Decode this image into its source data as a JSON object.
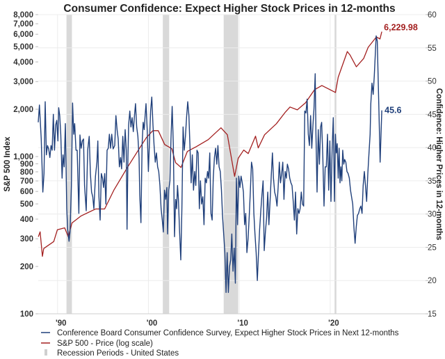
{
  "chart_data": {
    "type": "line",
    "title": "Consumer Confidence: Expect Higher Stock Prices in 12-months",
    "y_left_label": "S&P 500 Index",
    "y_right_label": "Confidence: Higher Prices in 12-months",
    "x_ticks": [
      {
        "year": 1990,
        "label": "'90"
      },
      {
        "year": 2000,
        "label": "'00"
      },
      {
        "year": 2010,
        "label": "'10"
      },
      {
        "year": 2020,
        "label": "'20"
      }
    ],
    "xlim": [
      1987.5,
      2030
    ],
    "y_left": {
      "scale": "log",
      "range": [
        100,
        8000
      ],
      "ticks": [
        100,
        200,
        300,
        400,
        500,
        600,
        700,
        800,
        900,
        1000,
        2000,
        3000,
        4000,
        5000,
        6000,
        7000,
        8000
      ],
      "tick_labels": [
        "100",
        "200",
        "300",
        "400",
        "500",
        "600",
        "700",
        "800",
        "900",
        "1,000",
        "2,000",
        "3,000",
        "4,000",
        "5,000",
        "6,000",
        "7,000",
        "8,000"
      ]
    },
    "y_right": {
      "scale": "linear",
      "range": [
        15,
        60
      ],
      "ticks": [
        15,
        20,
        25,
        30,
        35,
        40,
        45,
        50,
        55,
        60
      ],
      "tick_labels": [
        "15",
        "20",
        "25",
        "30",
        "35",
        "40",
        "45",
        "50",
        "55",
        "60"
      ]
    },
    "grid": true,
    "legend_position": "bottom-left",
    "recessions": [
      [
        1990.6,
        1991.2
      ],
      [
        2001.2,
        2001.9
      ],
      [
        2007.9,
        2009.5
      ],
      [
        2020.1,
        2020.3
      ]
    ],
    "series": [
      {
        "name": "Conference Board Consumer Confidence Survey, Expect Higher Stock Prices in Next 12-months",
        "axis": "right",
        "color": "#1f3f7a",
        "end_label": "45.6",
        "x": [
          1987.49,
          1987.62,
          1987.82,
          1988.0,
          1988.13,
          1988.26,
          1988.39,
          1988.51,
          1988.64,
          1988.77,
          1988.9,
          1989.02,
          1989.15,
          1989.28,
          1989.41,
          1989.53,
          1989.66,
          1989.74,
          1989.86,
          1989.97,
          1990.12,
          1990.22,
          1990.35,
          1990.48,
          1990.63,
          1990.73,
          1990.88,
          1990.99,
          1991.14,
          1991.27,
          1991.4,
          1991.5,
          1991.65,
          1991.78,
          1991.96,
          1992.08,
          1992.21,
          1992.34,
          1992.47,
          1992.59,
          1992.77,
          1992.93,
          1993.1,
          1993.23,
          1993.36,
          1993.49,
          1993.61,
          1993.79,
          1993.95,
          1994.05,
          1994.17,
          1994.3,
          1994.43,
          1994.56,
          1994.68,
          1994.81,
          1994.94,
          1995.07,
          1995.2,
          1995.32,
          1995.45,
          1995.58,
          1995.73,
          1995.91,
          1996.04,
          1996.17,
          1996.29,
          1996.42,
          1996.55,
          1996.67,
          1996.8,
          1996.93,
          1997.06,
          1997.18,
          1997.26,
          1997.36,
          1997.44,
          1997.57,
          1997.69,
          1997.82,
          1997.95,
          1998.08,
          1998.2,
          1998.33,
          1998.46,
          1998.59,
          1998.66,
          1998.79,
          1998.92,
          1999.04,
          1999.15,
          1999.25,
          1999.35,
          1999.48,
          1999.61,
          1999.73,
          1999.86,
          1999.99,
          2000.12,
          2000.24,
          2000.37,
          2000.5,
          2000.63,
          2000.75,
          2000.88,
          2001.01,
          2001.14,
          2001.26,
          2001.39,
          2001.52,
          2001.65,
          2001.72,
          2001.85,
          2001.98,
          2002.1,
          2002.23,
          2002.36,
          2002.49,
          2002.61,
          2002.72,
          2002.82,
          2002.92,
          2003.05,
          2003.18,
          2003.3,
          2003.43,
          2003.56,
          2003.69,
          2003.81,
          2003.94,
          2004.07,
          2004.2,
          2004.32,
          2004.45,
          2004.58,
          2004.71,
          2004.83,
          2004.96,
          2005.09,
          2005.22,
          2005.34,
          2005.47,
          2005.6,
          2005.73,
          2005.86,
          2005.99,
          2006.12,
          2006.24,
          2006.37,
          2006.5,
          2006.63,
          2006.75,
          2006.88,
          2007.01,
          2007.14,
          2007.26,
          2007.39,
          2007.52,
          2007.65,
          2007.77,
          2007.9,
          2008.03,
          2008.16,
          2008.28,
          2008.41,
          2008.54,
          2008.67,
          2008.79,
          2008.92,
          2009.05,
          2009.18,
          2009.3,
          2009.43,
          2009.56,
          2009.69,
          2009.81,
          2009.94,
          2010.07,
          2010.2,
          2010.32,
          2010.45,
          2010.58,
          2010.71,
          2010.83,
          2010.96,
          2011.09,
          2011.22,
          2011.34,
          2011.47,
          2011.6,
          2011.73,
          2011.85,
          2011.98,
          2012.11,
          2012.24,
          2012.36,
          2012.49,
          2012.62,
          2012.75,
          2012.87,
          2013.0,
          2013.13,
          2013.26,
          2013.38,
          2013.51,
          2013.64,
          2013.77,
          2013.89,
          2014.02,
          2014.15,
          2014.28,
          2014.4,
          2014.53,
          2014.66,
          2014.79,
          2014.91,
          2015.04,
          2015.17,
          2015.3,
          2015.42,
          2015.55,
          2015.68,
          2015.8,
          2015.93,
          2016.06,
          2016.19,
          2016.31,
          2016.44,
          2016.57,
          2016.7,
          2016.82,
          2016.95,
          2017.08,
          2017.21,
          2017.33,
          2017.46,
          2017.59,
          2017.72,
          2017.84,
          2017.97,
          2018.05,
          2018.17,
          2018.3,
          2018.43,
          2018.56,
          2018.68,
          2018.81,
          2018.94,
          2019.07,
          2019.19,
          2019.32,
          2019.45,
          2019.58,
          2019.7,
          2019.83,
          2019.96,
          2020.09,
          2020.19,
          2020.29,
          2020.39,
          2020.5,
          2020.6,
          2020.7,
          2020.8,
          2020.9,
          2021.0,
          2021.11,
          2021.21,
          2021.34,
          2021.46,
          2021.59,
          2021.72,
          2021.85,
          2021.97,
          2022.1,
          2022.23,
          2022.36,
          2022.48,
          2022.61,
          2022.74,
          2022.87,
          2022.99,
          2023.12,
          2023.25,
          2023.38,
          2023.5,
          2023.63,
          2023.76,
          2023.89,
          2024.01,
          2024.09,
          2024.22,
          2024.35,
          2024.47,
          2024.6,
          2024.68,
          2024.8,
          2024.98,
          2025.11,
          2025.3
        ],
        "y": [
          43.8,
          46.4,
          41.3,
          33.3,
          36.1,
          46.9,
          38.9,
          40.3,
          39.8,
          38.5,
          40.3,
          39.6,
          45.0,
          39.6,
          43.4,
          44.1,
          41.0,
          46.0,
          44.8,
          42.0,
          35.4,
          38.9,
          37.1,
          43.6,
          30.8,
          27.7,
          25.9,
          27.3,
          34.3,
          46.7,
          42.0,
          43.6,
          39.6,
          39.6,
          30.1,
          41.9,
          39.9,
          41.0,
          41.3,
          34.3,
          30.5,
          39.6,
          41.7,
          36.1,
          33.3,
          32.6,
          30.8,
          35.7,
          37.8,
          41.0,
          32.6,
          29.1,
          36.1,
          35.4,
          34.0,
          36.1,
          31.5,
          39.6,
          39.9,
          42.0,
          39.9,
          42.0,
          39.8,
          40.3,
          44.8,
          42.7,
          41.3,
          37.1,
          38.5,
          36.8,
          41.7,
          37.8,
          42.7,
          39.6,
          27.7,
          38.5,
          43.4,
          45.5,
          43.1,
          44.5,
          42.4,
          44.8,
          46.6,
          43.1,
          41.7,
          38.5,
          32.9,
          28.7,
          40.6,
          43.8,
          42.7,
          44.8,
          46.6,
          42.7,
          36.4,
          40.6,
          45.5,
          47.6,
          43.4,
          40.3,
          37.8,
          39.2,
          37.1,
          36.4,
          34.3,
          30.8,
          29.1,
          27.3,
          33.6,
          32.2,
          34.0,
          27.0,
          33.6,
          35.0,
          41.3,
          46.2,
          40.3,
          26.6,
          32.2,
          30.8,
          34.3,
          32.2,
          27.3,
          23.1,
          30.8,
          43.1,
          39.6,
          41.7,
          44.5,
          46.9,
          44.8,
          39.6,
          34.7,
          38.9,
          33.6,
          36.4,
          34.3,
          39.6,
          39.2,
          30.8,
          35.0,
          31.5,
          32.6,
          28.4,
          35.4,
          34.7,
          36.4,
          35.4,
          39.2,
          30.1,
          29.1,
          35.4,
          38.5,
          39.9,
          37.5,
          40.3,
          37.1,
          36.4,
          33.6,
          29.8,
          27.0,
          24.2,
          18.2,
          24.2,
          18.2,
          22.1,
          23.1,
          27.0,
          21.4,
          24.9,
          19.6,
          35.4,
          28.4,
          35.7,
          34.0,
          35.7,
          34.7,
          33.3,
          28.4,
          30.1,
          24.2,
          26.3,
          29.8,
          33.3,
          37.8,
          36.8,
          30.1,
          27.0,
          24.2,
          20.0,
          24.2,
          27.7,
          30.5,
          32.9,
          35.0,
          24.5,
          27.3,
          29.4,
          33.3,
          28.4,
          31.9,
          35.7,
          39.2,
          35.4,
          33.3,
          32.6,
          31.2,
          34.0,
          37.8,
          34.7,
          36.1,
          37.8,
          32.2,
          36.4,
          35.4,
          37.5,
          36.8,
          35.4,
          34.7,
          34.3,
          31.9,
          29.1,
          33.3,
          27.0,
          30.8,
          30.1,
          30.8,
          33.3,
          31.5,
          31.2,
          45.5,
          45.2,
          47.3,
          42.0,
          40.3,
          44.8,
          39.9,
          43.4,
          45.9,
          51.1,
          42.0,
          33.3,
          42.7,
          37.5,
          43.1,
          43.8,
          38.5,
          31.2,
          37.1,
          37.1,
          42.0,
          33.6,
          41.0,
          31.9,
          39.9,
          44.5,
          31.9,
          42.0,
          39.2,
          40.6,
          35.4,
          39.9,
          34.7,
          37.1,
          35.0,
          39.6,
          37.5,
          38.2,
          37.8,
          36.4,
          36.1,
          35.4,
          33.6,
          32.6,
          31.5,
          28.0,
          25.6,
          28.0,
          29.8,
          30.1,
          30.8,
          31.2,
          30.1,
          34.3,
          36.4,
          34.3,
          31.9,
          36.1,
          39.2,
          42.0,
          46.6,
          49.7,
          48.0,
          50.8,
          54.6,
          56.8,
          56.0,
          45.5,
          37.8,
          45.6
        ]
      },
      {
        "name": "S&P 500 - Price (log scale)",
        "axis": "left",
        "color": "#a31f1f",
        "end_label": "6,229.98",
        "x": [
          1987.5,
          1987.7,
          1987.95,
          1988.1,
          1989.2,
          1989.6,
          1990.4,
          1990.8,
          1991.2,
          1992.2,
          1993.8,
          1994.8,
          1995.8,
          1997.3,
          1998.6,
          1999.4,
          2000.1,
          2000.7,
          2001.4,
          2002.2,
          2002.6,
          2003.2,
          2003.9,
          2004.9,
          2006.2,
          2007.6,
          2008.3,
          2009.1,
          2009.5,
          2010.1,
          2010.6,
          2011.4,
          2011.7,
          2012.4,
          2013.7,
          2014.7,
          2015.2,
          2016.0,
          2016.9,
          2017.9,
          2018.7,
          2020.2,
          2020.5,
          2021.5,
          2021.8,
          2022.5,
          2023.3,
          2023.8,
          2024.7,
          2025.1,
          2025.3
        ],
        "y": [
          309,
          332,
          232,
          260,
          288,
          342,
          352,
          309,
          378,
          419,
          464,
          464,
          610,
          853,
          1122,
          1321,
          1462,
          1462,
          1193,
          1122,
          916,
          853,
          1078,
          1158,
          1282,
          1524,
          1376,
          748,
          975,
          1100,
          1045,
          1349,
          1135,
          1376,
          1618,
          1923,
          2066,
          1983,
          2197,
          2663,
          2831,
          2558,
          3198,
          4659,
          4429,
          3725,
          4206,
          4954,
          5768,
          5598,
          6229.98
        ]
      },
      {
        "name": "Recession Periods - United States",
        "color": "#d9d9d9"
      }
    ]
  }
}
